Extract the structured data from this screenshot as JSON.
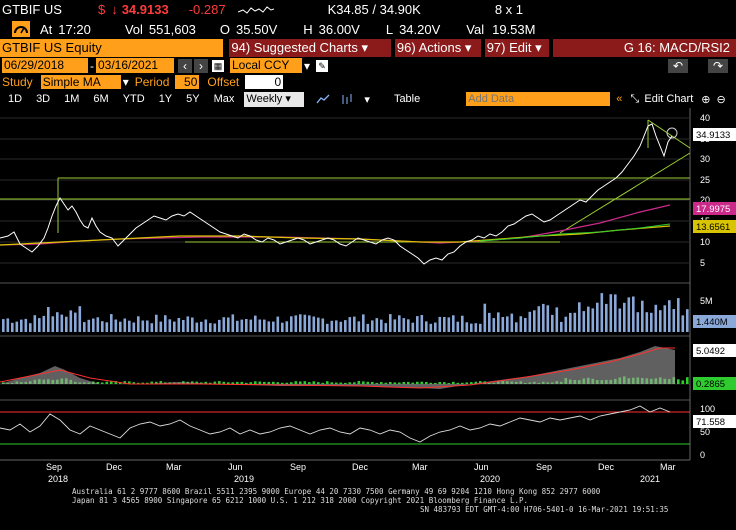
{
  "quote": {
    "ticker": "GTBIF US",
    "currency_symbol": "$",
    "arrow": "↓",
    "last": "34.9133",
    "change": "-0.287",
    "bid_ask": "K34.85 / 34.90K",
    "size": "8 x 1",
    "at_label": "At",
    "time": "17:20",
    "vol_label": "Vol",
    "volume": "551,603",
    "open_label": "O",
    "open": "35.50V",
    "high_label": "H",
    "high": "36.00V",
    "low_label": "L",
    "low": "34.20V",
    "val_label": "Val",
    "value": "19.53M"
  },
  "toolbar": {
    "security": "GTBIF US Equity",
    "suggested": "94) Suggested Charts ▾",
    "actions": "96) Actions ▾",
    "edit": "97) Edit ▾",
    "template": "G 16: MACD/RSI2"
  },
  "range": {
    "start": "06/29/2018",
    "end": "03/16/2021",
    "ccy": "Local CCY"
  },
  "study": {
    "label": "Study",
    "type": "Simple MA",
    "period_label": "Period",
    "period": "50",
    "offset_label": "Offset",
    "offset": "0"
  },
  "period_bar": {
    "buttons": [
      "1D",
      "3D",
      "1M",
      "6M",
      "YTD",
      "1Y",
      "5Y",
      "Max"
    ],
    "frequency": "Weekly ▾",
    "table": "Table",
    "add_data_placeholder": "Add Data",
    "edit_chart": "Edit Chart"
  },
  "axes": {
    "price_ticks": [
      "40",
      "35",
      "30",
      "25",
      "20",
      "15",
      "10",
      "5"
    ],
    "volume_tick": "5M",
    "rsi_ticks": [
      "100",
      "50",
      "0"
    ],
    "x_months": [
      "Sep",
      "Dec",
      "Mar",
      "Jun",
      "Sep",
      "Dec",
      "Mar",
      "Jun",
      "Sep",
      "Dec",
      "Mar"
    ],
    "x_years": [
      "2018",
      "2019",
      "2020",
      "2021"
    ]
  },
  "labels": {
    "last_price": "34.9133",
    "ma_long": "17.9975",
    "ma_short": "13.6561",
    "volume_last": "1.440M",
    "macd": "5.0492",
    "signal": "0.2865",
    "rsi": "71.558"
  },
  "colors": {
    "accent": "#ff9f1a",
    "price": "#ffffff",
    "ma_long": "#cc2a8a",
    "ma_short": "#d8c400",
    "volume": "#8aa8d8",
    "macd_fill": "#a0a0a0",
    "histogram": "#2ecc2e",
    "trendline": "#9acd32",
    "rsi_line": "#ff3030"
  },
  "footer": {
    "line1": "Australia 61 2 9777 8600  Brazil 5511 2395 9000  Europe 44 20 7330 7500  Germany 49 69 9204 1210  Hong Kong 852 2977 6000",
    "line2": "Japan 81 3 4565 8900       Singapore 65 6212 1000       U.S. 1 212 318 2000             Copyright 2021 Bloomberg Finance L.P.",
    "line3": "SN 483793 EDT  GMT-4:00 H706-5401-0 16-Mar-2021 19:51:35"
  }
}
